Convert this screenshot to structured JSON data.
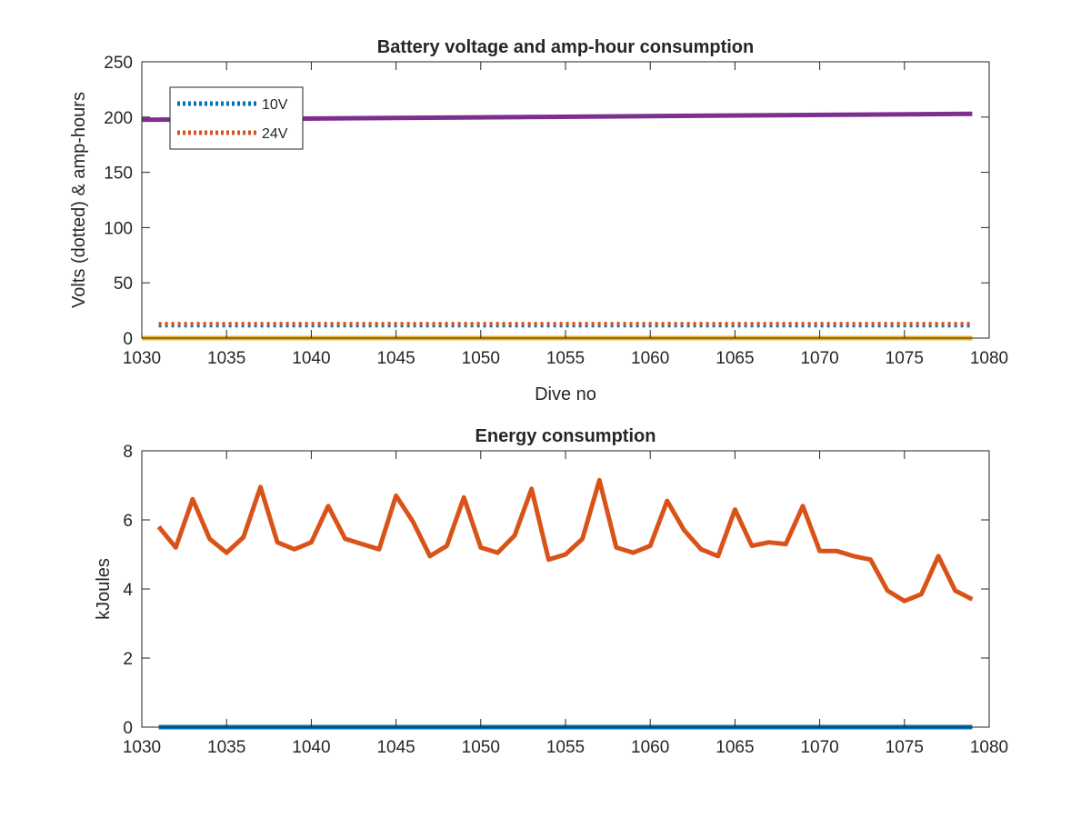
{
  "chart_data": [
    {
      "type": "line",
      "title": "Battery voltage and amp-hour consumption",
      "xlabel": "Dive no",
      "ylabel": "Volts (dotted) & amp-hours",
      "xlim": [
        1030,
        1080
      ],
      "ylim": [
        0,
        250
      ],
      "xticks": [
        1030,
        1035,
        1040,
        1045,
        1050,
        1055,
        1060,
        1065,
        1070,
        1075,
        1080
      ],
      "yticks": [
        0,
        50,
        100,
        150,
        200,
        250
      ],
      "legend": {
        "placement": "top-left",
        "entries": [
          "10V",
          "24V"
        ]
      },
      "series": [
        {
          "name": "10V",
          "style": "dotted",
          "color": "#0072BD",
          "x": [
            1031,
            1079
          ],
          "y": [
            11.5,
            11.5
          ]
        },
        {
          "name": "24V",
          "style": "dotted",
          "color": "#D95319",
          "x": [
            1031,
            1079
          ],
          "y": [
            12.8,
            12.8
          ]
        },
        {
          "style": "solid",
          "color": "#7E2F8E",
          "x": [
            1030,
            1079
          ],
          "y": [
            197.5,
            203
          ]
        },
        {
          "style": "solid",
          "color": "#EDB120",
          "x": [
            1030,
            1079
          ],
          "y": [
            0,
            0
          ]
        }
      ]
    },
    {
      "type": "line",
      "title": "Energy consumption",
      "xlabel": "",
      "ylabel": "kJoules",
      "xlim": [
        1030,
        1080
      ],
      "ylim": [
        0,
        8
      ],
      "xticks": [
        1030,
        1035,
        1040,
        1045,
        1050,
        1055,
        1060,
        1065,
        1070,
        1075,
        1080
      ],
      "yticks": [
        0,
        2,
        4,
        6,
        8
      ],
      "series": [
        {
          "style": "solid",
          "color": "#D95319",
          "x": [
            1031,
            1032,
            1033,
            1034,
            1035,
            1036,
            1037,
            1038,
            1039,
            1040,
            1041,
            1042,
            1043,
            1044,
            1045,
            1046,
            1047,
            1048,
            1049,
            1050,
            1051,
            1052,
            1053,
            1054,
            1055,
            1056,
            1057,
            1058,
            1059,
            1060,
            1061,
            1062,
            1063,
            1064,
            1065,
            1066,
            1067,
            1068,
            1069,
            1070,
            1071,
            1072,
            1073,
            1074,
            1075,
            1076,
            1077,
            1078,
            1079
          ],
          "y": [
            5.8,
            5.2,
            6.6,
            5.45,
            5.05,
            5.5,
            6.95,
            5.35,
            5.15,
            5.35,
            6.4,
            5.45,
            5.3,
            5.15,
            6.7,
            5.95,
            4.95,
            5.25,
            6.65,
            5.2,
            5.05,
            5.55,
            6.9,
            4.85,
            5.0,
            5.45,
            7.15,
            5.2,
            5.05,
            5.25,
            6.55,
            5.7,
            5.15,
            4.95,
            6.3,
            5.25,
            5.35,
            5.3,
            6.4,
            5.1,
            5.1,
            4.95,
            4.85,
            3.95,
            3.65,
            3.85,
            4.95,
            3.95,
            3.7
          ]
        },
        {
          "style": "solid",
          "color": "#0072BD",
          "x": [
            1031,
            1079
          ],
          "y": [
            0,
            0
          ]
        }
      ]
    }
  ]
}
